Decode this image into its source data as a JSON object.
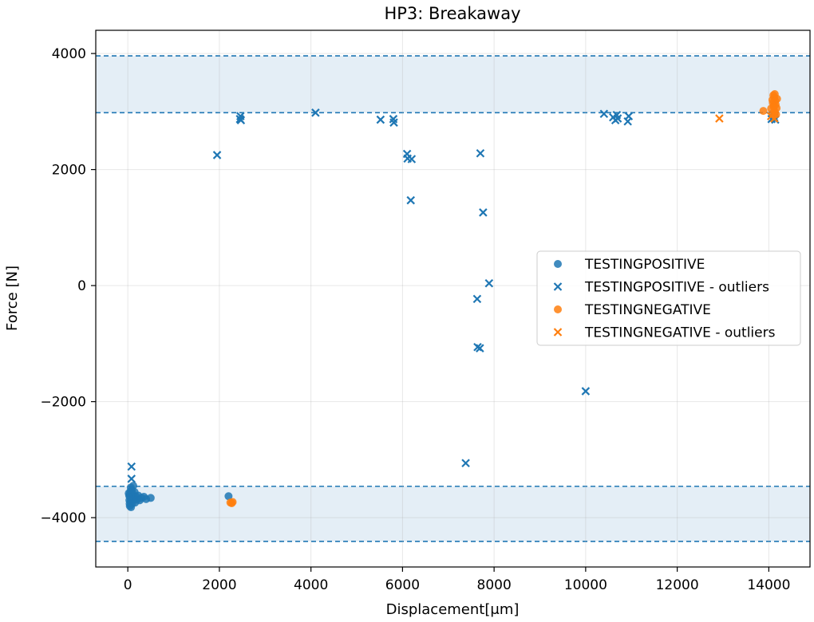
{
  "chart_data": {
    "type": "scatter",
    "title": "HP3: Breakaway",
    "xlabel": "Displacement[μm]",
    "ylabel": "Force [N]",
    "xlim": [
      -700,
      14900
    ],
    "ylim": [
      -4850,
      4400
    ],
    "xticks": [
      0,
      2000,
      4000,
      6000,
      8000,
      10000,
      12000,
      14000
    ],
    "xtick_labels": [
      "0",
      "2000",
      "4000",
      "6000",
      "8000",
      "10000",
      "12000",
      "14000"
    ],
    "yticks": [
      -4000,
      -2000,
      0,
      2000,
      4000
    ],
    "ytick_labels": [
      "−4000",
      "−2000",
      "0",
      "2000",
      "4000"
    ],
    "grid": true,
    "legend_position": "center-right",
    "bands": [
      {
        "y_min": 2980,
        "y_max": 3960,
        "color": "#1f77b4"
      },
      {
        "y_min": -4410,
        "y_max": -3460,
        "color": "#1f77b4"
      }
    ],
    "series": [
      {
        "name": "TESTINGPOSITIVE",
        "marker": "circle",
        "color": "#1f77b4",
        "points": [
          [
            20,
            -3580
          ],
          [
            30,
            -3620
          ],
          [
            35,
            -3700
          ],
          [
            40,
            -3760
          ],
          [
            45,
            -3800
          ],
          [
            50,
            -3650
          ],
          [
            55,
            -3550
          ],
          [
            60,
            -3720
          ],
          [
            65,
            -3480
          ],
          [
            70,
            -3820
          ],
          [
            75,
            -3600
          ],
          [
            80,
            -3680
          ],
          [
            85,
            -3520
          ],
          [
            90,
            -3760
          ],
          [
            95,
            -3640
          ],
          [
            100,
            -3580
          ],
          [
            110,
            -3700
          ],
          [
            120,
            -3450
          ],
          [
            130,
            -3620
          ],
          [
            140,
            -3680
          ],
          [
            150,
            -3560
          ],
          [
            160,
            -3740
          ],
          [
            180,
            -3640
          ],
          [
            200,
            -3690
          ],
          [
            230,
            -3620
          ],
          [
            260,
            -3700
          ],
          [
            300,
            -3660
          ],
          [
            350,
            -3640
          ],
          [
            400,
            -3680
          ],
          [
            500,
            -3660
          ],
          [
            2200,
            -3630
          ]
        ]
      },
      {
        "name": "TESTINGPOSITIVE - outliers",
        "marker": "x",
        "color": "#1f77b4",
        "points": [
          [
            80,
            -3120
          ],
          [
            80,
            -3330
          ],
          [
            1950,
            2250
          ],
          [
            2450,
            2870
          ],
          [
            2460,
            2920
          ],
          [
            2470,
            2850
          ],
          [
            4100,
            2980
          ],
          [
            5520,
            2860
          ],
          [
            5800,
            2870
          ],
          [
            5810,
            2810
          ],
          [
            6100,
            2270
          ],
          [
            6110,
            2190
          ],
          [
            6200,
            2180
          ],
          [
            6180,
            1470
          ],
          [
            7380,
            -3060
          ],
          [
            7630,
            -230
          ],
          [
            7640,
            -1060
          ],
          [
            7690,
            -1080
          ],
          [
            7700,
            2280
          ],
          [
            7760,
            1260
          ],
          [
            7890,
            40
          ],
          [
            10000,
            -1820
          ],
          [
            10400,
            2960
          ],
          [
            10600,
            2900
          ],
          [
            10650,
            2850
          ],
          [
            10680,
            2940
          ],
          [
            10700,
            2880
          ],
          [
            10920,
            2830
          ],
          [
            10940,
            2920
          ],
          [
            14060,
            2870
          ],
          [
            14100,
            2950
          ],
          [
            14120,
            2900
          ],
          [
            14140,
            2860
          ]
        ]
      },
      {
        "name": "TESTINGNEGATIVE",
        "marker": "circle",
        "color": "#ff7f0e",
        "points": [
          [
            2240,
            -3740
          ],
          [
            2270,
            -3750
          ],
          [
            2290,
            -3730
          ],
          [
            13880,
            3010
          ],
          [
            14050,
            3050
          ],
          [
            14080,
            3200
          ],
          [
            14090,
            3150
          ],
          [
            14100,
            3280
          ],
          [
            14110,
            3100
          ],
          [
            14120,
            3240
          ],
          [
            14130,
            3000
          ],
          [
            14140,
            3180
          ],
          [
            14150,
            3120
          ],
          [
            14160,
            2950
          ],
          [
            14170,
            3060
          ],
          [
            14180,
            3220
          ],
          [
            14100,
            2960
          ],
          [
            14110,
            3080
          ],
          [
            14130,
            3300
          ]
        ]
      },
      {
        "name": "TESTINGNEGATIVE - outliers",
        "marker": "x",
        "color": "#ff7f0e",
        "points": [
          [
            12920,
            2880
          ],
          [
            14050,
            2920
          ],
          [
            14120,
            2880
          ]
        ]
      }
    ]
  }
}
